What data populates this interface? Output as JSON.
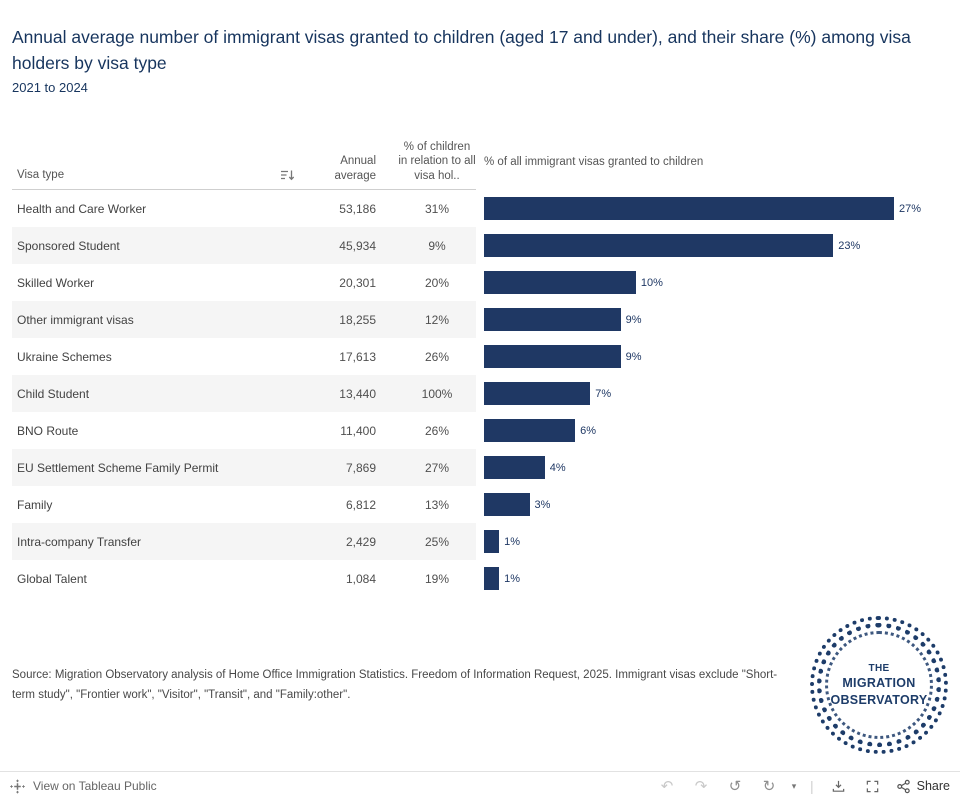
{
  "title": {
    "text": "Annual average number of immigrant visas granted to children (aged 17 and under), and their share (%) among visa holders by visa type",
    "subtitle": "2021 to 2024"
  },
  "table": {
    "columns": {
      "visa_type": "Visa type",
      "annual_average": "Annual average",
      "pct_children": "% of children in relation to all visa hol.."
    },
    "rows": [
      {
        "label": "Health and Care Worker",
        "annual_average": "53,186",
        "pct_children": "31%"
      },
      {
        "label": "Sponsored Student",
        "annual_average": "45,934",
        "pct_children": "9%"
      },
      {
        "label": "Skilled Worker",
        "annual_average": "20,301",
        "pct_children": "20%"
      },
      {
        "label": "Other immigrant visas",
        "annual_average": "18,255",
        "pct_children": "12%"
      },
      {
        "label": "Ukraine Schemes",
        "annual_average": "17,613",
        "pct_children": "26%"
      },
      {
        "label": "Child Student",
        "annual_average": "13,440",
        "pct_children": "100%"
      },
      {
        "label": "BNO Route",
        "annual_average": "11,400",
        "pct_children": "26%"
      },
      {
        "label": "EU Settlement Scheme Family Permit",
        "annual_average": "7,869",
        "pct_children": "27%"
      },
      {
        "label": "Family",
        "annual_average": "6,812",
        "pct_children": "13%"
      },
      {
        "label": "Intra-company Transfer",
        "annual_average": "2,429",
        "pct_children": "25%"
      },
      {
        "label": "Global Talent",
        "annual_average": "1,084",
        "pct_children": "19%"
      }
    ]
  },
  "chart_data": {
    "type": "bar",
    "orientation": "horizontal",
    "title": "% of all immigrant visas granted to children",
    "categories": [
      "Health and Care Worker",
      "Sponsored Student",
      "Skilled Worker",
      "Other immigrant visas",
      "Ukraine Schemes",
      "Child Student",
      "BNO Route",
      "EU Settlement Scheme Family Permit",
      "Family",
      "Intra-company Transfer",
      "Global Talent"
    ],
    "series": [
      {
        "name": "Annual average",
        "values": [
          53186,
          45934,
          20301,
          18255,
          17613,
          13440,
          11400,
          7869,
          6812,
          2429,
          1084
        ]
      },
      {
        "name": "% of children in relation to all visa holders",
        "values": [
          31,
          9,
          20,
          12,
          26,
          100,
          26,
          27,
          13,
          25,
          19
        ]
      },
      {
        "name": "% of all immigrant visas granted to children",
        "values": [
          27,
          23,
          10,
          9,
          9,
          7,
          6,
          4,
          3,
          1,
          1
        ]
      }
    ],
    "bar_labels": [
      "27%",
      "23%",
      "10%",
      "9%",
      "9%",
      "7%",
      "6%",
      "4%",
      "3%",
      "1%",
      "1%"
    ],
    "bar_color": "#1f3864",
    "xlim": [
      0,
      27
    ],
    "grid": "off",
    "legend": "none"
  },
  "source": {
    "text": "Source: Migration Observatory analysis of Home Office Immigration Statistics. Freedom of Information Request, 2025. Immigrant visas exclude \"Short-term study\", \"Frontier work\", \"Visitor\", \"Transit\", and \"Family:other\"."
  },
  "logo": {
    "line1": "THE",
    "line2": "MIGRATION",
    "line3": "OBSERVATORY",
    "color": "#1d3c69"
  },
  "toolbar": {
    "view_label": "View on Tableau Public",
    "share_label": "Share",
    "icons": [
      "tableau-logo",
      "undo",
      "redo",
      "revert",
      "refresh",
      "download-caret",
      "download",
      "fullscreen",
      "share"
    ]
  },
  "colors": {
    "accent": "#1f3864",
    "title_text": "#17355e",
    "row_alt": "#f5f5f5"
  }
}
